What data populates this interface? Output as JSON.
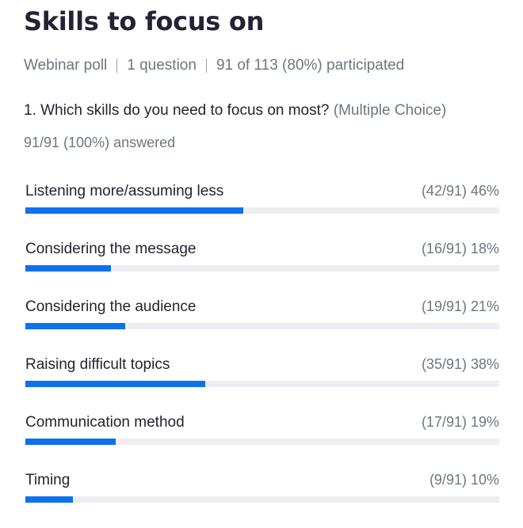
{
  "poll": {
    "title": "Skills to focus on",
    "meta": {
      "type": "Webinar poll",
      "questions": "1 question",
      "participation": "91 of 113 (80%) participated"
    },
    "question": {
      "text": "1. Which skills do you need to focus on most?",
      "type": "(Multiple Choice)",
      "answered": "91/91 (100%) answered"
    },
    "options": [
      {
        "label": "Listening more/assuming less",
        "stat": "(42/91) 46%",
        "fraction": 0.46
      },
      {
        "label": "Considering the message",
        "stat": "(16/91) 18%",
        "fraction": 0.18
      },
      {
        "label": "Considering the audience",
        "stat": "(19/91) 21%",
        "fraction": 0.21
      },
      {
        "label": "Raising difficult topics",
        "stat": "(35/91) 38%",
        "fraction": 0.38
      },
      {
        "label": "Communication method",
        "stat": "(17/91) 19%",
        "fraction": 0.19
      },
      {
        "label": "Timing",
        "stat": "(9/91) 10%",
        "fraction": 0.1
      }
    ]
  },
  "colors": {
    "bar_fill": "#0e71eb",
    "bar_track": "#ededf2",
    "text_primary": "#232333",
    "text_secondary": "#6e7680"
  }
}
